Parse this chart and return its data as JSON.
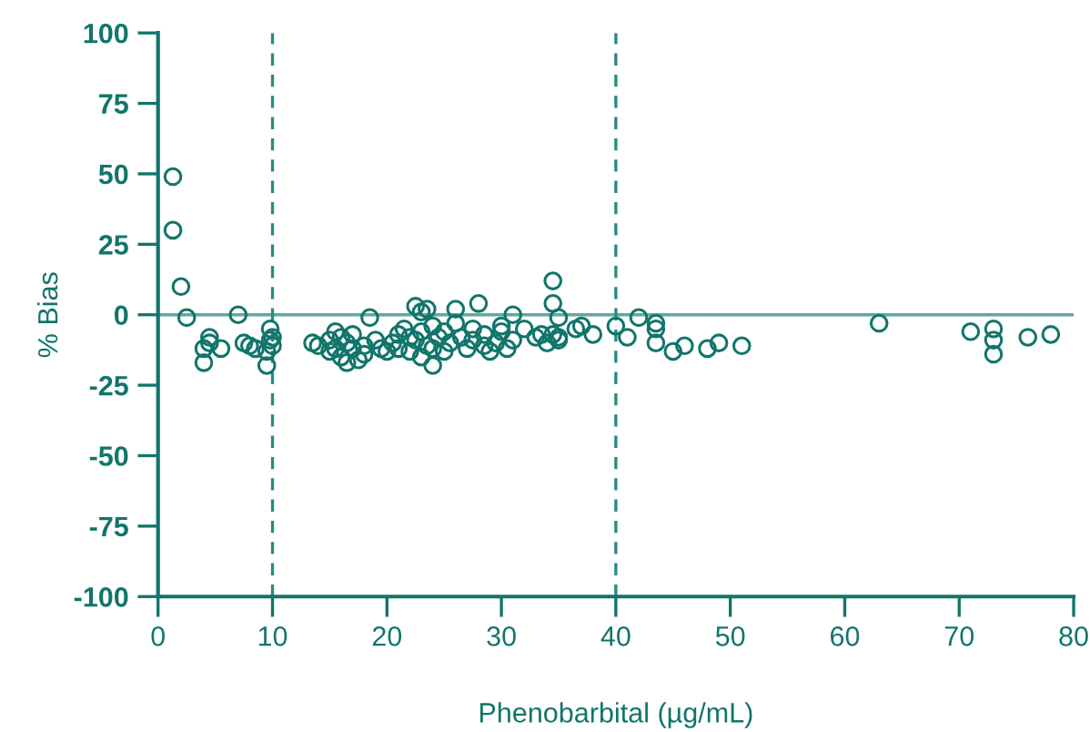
{
  "chart_data": {
    "type": "scatter",
    "xlabel": "Phenobarbital (µg/mL)",
    "ylabel": "% Bias",
    "xlim": [
      0,
      80
    ],
    "ylim": [
      -100,
      100
    ],
    "xticks": [
      0,
      10,
      20,
      30,
      40,
      50,
      60,
      70,
      80
    ],
    "yticks": [
      -100,
      -75,
      -50,
      -25,
      0,
      25,
      50,
      75,
      100
    ],
    "grid": false,
    "marker": "circle",
    "ref_lines": [
      {
        "axis": "y",
        "value": 0,
        "color": "#5fa8a0",
        "line_style": "solid"
      },
      {
        "axis": "x",
        "value": 10,
        "color": "#2a8a80",
        "line_style": "dashed"
      },
      {
        "axis": "x",
        "value": 40,
        "color": "#2a8a80",
        "line_style": "dashed"
      }
    ],
    "series": [
      {
        "color": "#11756b",
        "x": [
          1.3,
          1.3,
          2,
          2.5,
          4,
          4,
          4.5,
          4.5,
          5.5,
          7,
          7.5,
          8,
          8.5,
          9.5,
          9.5,
          9.8,
          9.8,
          10,
          10,
          13.5,
          14,
          15,
          15,
          15.5,
          15.5,
          16,
          16,
          16.5,
          16.5,
          17,
          17,
          17.5,
          18,
          18,
          18.5,
          19,
          19.5,
          20,
          20.5,
          21,
          21,
          21.5,
          22,
          22,
          22.5,
          22.5,
          23,
          23,
          23,
          23.5,
          23.5,
          24,
          24,
          24,
          24.5,
          25,
          25,
          25.5,
          26,
          26,
          26.5,
          27,
          27.5,
          27.5,
          28,
          28.5,
          28.5,
          29,
          29.5,
          30,
          30,
          30.5,
          31,
          31,
          32,
          33,
          33.5,
          34,
          34.5,
          34.5,
          34.5,
          35,
          35,
          35,
          36.5,
          37,
          38,
          40,
          41,
          42,
          43.5,
          43.5,
          43.5,
          45,
          46,
          48,
          49,
          51,
          63,
          71,
          73,
          73,
          73,
          76,
          78
        ],
        "values": [
          49,
          30,
          10,
          -1,
          -17,
          -12,
          -8,
          -10,
          -12,
          0,
          -10,
          -11,
          -12,
          -18,
          -13,
          -9,
          -5,
          -11,
          -8,
          -10,
          -11,
          -9,
          -13,
          -6,
          -12,
          -8,
          -15,
          -10,
          -17,
          -12,
          -7,
          -16,
          -11,
          -14,
          -1,
          -9,
          -12,
          -13,
          -10,
          -7,
          -12,
          -5,
          -8,
          -13,
          3,
          -9,
          1,
          -6,
          -15,
          -11,
          2,
          -4,
          -12,
          -18,
          -8,
          -6,
          -13,
          -10,
          -3,
          2,
          -8,
          -12,
          -5,
          -9,
          4,
          -11,
          -7,
          -13,
          -10,
          -6,
          -4,
          -12,
          0,
          -9,
          -5,
          -8,
          -7,
          -10,
          12,
          4,
          -7,
          -1,
          -9,
          -8,
          -5,
          -4,
          -7,
          -4,
          -8,
          -1,
          -3,
          -5,
          -10,
          -13,
          -11,
          -12,
          -10,
          -11,
          -3,
          -6,
          -5,
          -9,
          -14,
          -8,
          -7
        ]
      }
    ]
  }
}
